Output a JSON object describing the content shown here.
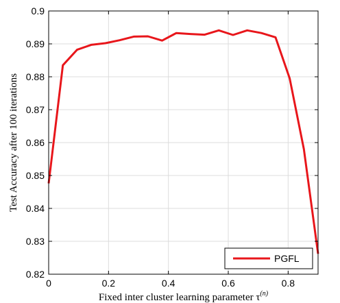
{
  "chart_data": {
    "type": "line",
    "xlabel": "Fixed inter cluster learning parameter τ",
    "xlabel_superscript": "(n)",
    "ylabel": "Test Accuracy after 100 iterations",
    "xlim": [
      0,
      0.9
    ],
    "ylim": [
      0.82,
      0.9
    ],
    "xticks": [
      0,
      0.2,
      0.4,
      0.6,
      0.8
    ],
    "xtick_labels": [
      "0",
      "0.2",
      "0.4",
      "0.6",
      "0.8"
    ],
    "yticks": [
      0.82,
      0.83,
      0.84,
      0.85,
      0.86,
      0.87,
      0.88,
      0.89,
      0.9
    ],
    "ytick_labels": [
      "0.82",
      "0.83",
      "0.84",
      "0.85",
      "0.86",
      "0.87",
      "0.88",
      "0.89",
      "0.9"
    ],
    "grid": true,
    "legend_position": "bottom-right",
    "series": [
      {
        "name": "PGFL",
        "color": "#e8161b",
        "x": [
          0,
          0.0474,
          0.0947,
          0.1421,
          0.1895,
          0.2368,
          0.2842,
          0.3316,
          0.3789,
          0.4263,
          0.4737,
          0.5211,
          0.5684,
          0.6158,
          0.6632,
          0.7105,
          0.7579,
          0.8053,
          0.8526,
          0.9
        ],
        "values": [
          0.8476,
          0.8835,
          0.8882,
          0.8897,
          0.8902,
          0.8911,
          0.8922,
          0.8923,
          0.891,
          0.8933,
          0.893,
          0.8928,
          0.8941,
          0.8927,
          0.8941,
          0.8933,
          0.892,
          0.8795,
          0.858,
          0.8262
        ]
      }
    ]
  }
}
